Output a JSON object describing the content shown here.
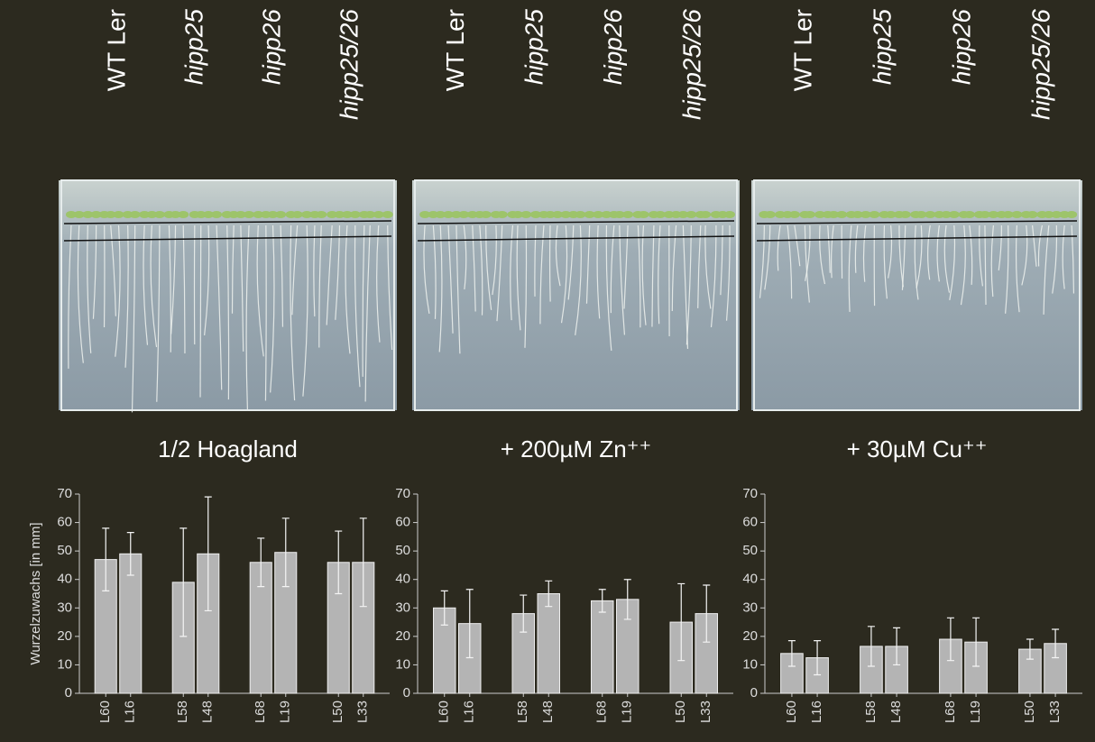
{
  "chart_data": [
    {
      "type": "bar",
      "title": "1/2 Hoagland",
      "groups": [
        "WT Ler",
        "hipp25",
        "hipp26",
        "hipp25/26"
      ],
      "y_label": "Wurzelzuwachs [in mm]",
      "categories": [
        "L60",
        "L16",
        "L58",
        "L48",
        "L68",
        "L19",
        "L50",
        "L33"
      ],
      "values": [
        47,
        49,
        39,
        49,
        46,
        49.5,
        46,
        46
      ],
      "errors": [
        11,
        7.5,
        19,
        20,
        8.5,
        12,
        11,
        15.5
      ],
      "color": "#b4b4b4",
      "ylim": [
        0,
        70
      ],
      "yticks": [
        0,
        10,
        20,
        30,
        40,
        50,
        60,
        70
      ]
    },
    {
      "type": "bar",
      "title": "+ 200µM  Zn⁺⁺",
      "groups": [
        "WT Ler",
        "hipp25",
        "hipp26",
        "hipp25/26"
      ],
      "categories": [
        "L60",
        "L16",
        "L58",
        "L48",
        "L68",
        "L19",
        "L50",
        "L33"
      ],
      "values": [
        30,
        24.5,
        28,
        35,
        32.5,
        33,
        25,
        28
      ],
      "errors": [
        6,
        12,
        6.5,
        4.5,
        4,
        7,
        13.5,
        10
      ],
      "color": "#b4b4b4",
      "ylim": [
        0,
        70
      ],
      "yticks": [
        0,
        10,
        20,
        30,
        40,
        50,
        60,
        70
      ]
    },
    {
      "type": "bar",
      "title": "+ 30µM  Cu⁺⁺",
      "groups": [
        "WT Ler",
        "hipp25",
        "hipp26",
        "hipp25/26"
      ],
      "categories": [
        "L60",
        "L16",
        "L58",
        "L48",
        "L68",
        "L19",
        "L50",
        "L33"
      ],
      "values": [
        14,
        12.5,
        16.5,
        16.5,
        19,
        18,
        15.5,
        17.5
      ],
      "errors": [
        4.5,
        6,
        7,
        6.5,
        7.5,
        8.5,
        3.5,
        5
      ],
      "color": "#b4b4b4",
      "ylim": [
        0,
        70
      ],
      "yticks": [
        0,
        10,
        20,
        30,
        40,
        50,
        60,
        70
      ]
    }
  ]
}
